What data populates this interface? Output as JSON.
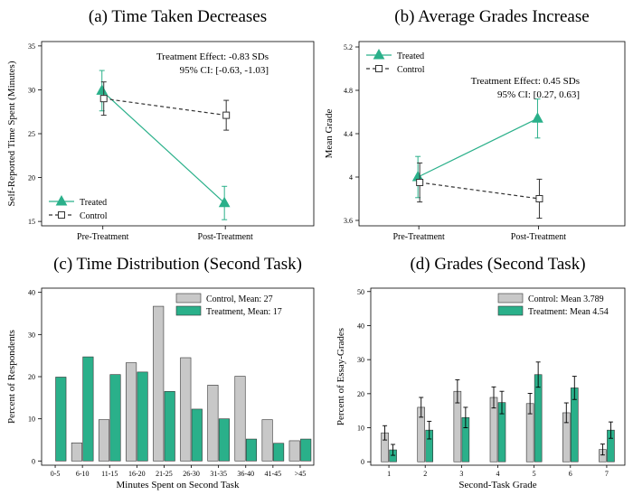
{
  "colors": {
    "treated": "#2ab08a",
    "control": "#555555",
    "bar_control": "#c8c8c8",
    "bar_treat": "#2ab08a"
  },
  "chart_data": [
    {
      "type": "line",
      "title": "(a) Time Taken Decreases",
      "ylabel": "Self-Reported Time Spent (Minutes)",
      "xlabel": "",
      "categories": [
        "Pre-Treatment",
        "Post-Treatment"
      ],
      "yticks": [
        15,
        20,
        25,
        30,
        35
      ],
      "ylim": [
        14.5,
        35.5
      ],
      "series": [
        {
          "name": "Treated",
          "values": [
            29.9,
            17.1
          ],
          "err": [
            2.3,
            1.9
          ],
          "marker": "triangle"
        },
        {
          "name": "Control",
          "values": [
            29.0,
            27.1
          ],
          "err": [
            1.9,
            1.7
          ],
          "marker": "square"
        }
      ],
      "annotation": [
        "Treatment Effect:    -0.83 SDs",
        "95% CI:   [-0.63, -1.03]"
      ],
      "legend": "bottom-left"
    },
    {
      "type": "line",
      "title": "(b) Average Grades Increase",
      "ylabel": "Mean Grade",
      "xlabel": "",
      "categories": [
        "Pre-Treatment",
        "Post-Treatment"
      ],
      "yticks": [
        3.6,
        4,
        4.4,
        4.8,
        5.2
      ],
      "ytick_labels": [
        "3.6",
        "4",
        "4.4",
        "4.8",
        "5.2"
      ],
      "ylim": [
        3.55,
        5.25
      ],
      "series": [
        {
          "name": "Treated",
          "values": [
            4.0,
            4.54
          ],
          "err": [
            0.19,
            0.18
          ],
          "marker": "triangle"
        },
        {
          "name": "Control",
          "values": [
            3.95,
            3.8
          ],
          "err": [
            0.18,
            0.18
          ],
          "marker": "square"
        }
      ],
      "annotation": [
        "Treatment Effect:     0.45 SDs",
        "95% CI:  [0.27, 0.63]"
      ],
      "legend": "top-left"
    },
    {
      "type": "bar",
      "title": "(c) Time Distribution (Second Task)",
      "ylabel": "Percent of Respondents",
      "xlabel": "Minutes Spent on Second Task",
      "categories": [
        "0-5",
        "6-10",
        "11-15",
        "16-20",
        "21-25",
        "26-30",
        "31-35",
        "36-40",
        "41-45",
        ">45"
      ],
      "yticks": [
        0,
        10,
        20,
        30,
        40
      ],
      "ylim": [
        -1,
        41
      ],
      "series": [
        {
          "name": "Control, Mean: 27",
          "values": [
            0,
            4.3,
            9.8,
            23.3,
            36.7,
            24.5,
            18.0,
            20.1,
            9.8,
            4.8
          ]
        },
        {
          "name": "Treatment, Mean: 17",
          "values": [
            19.9,
            24.7,
            20.5,
            21.1,
            16.5,
            12.3,
            10.0,
            5.2,
            4.2,
            5.2
          ]
        }
      ],
      "legend": "top-right"
    },
    {
      "type": "bar",
      "title": "(d) Grades (Second Task)",
      "ylabel": "Percent of Essay-Grades",
      "xlabel": "Second-Task Grade",
      "categories": [
        "1",
        "2",
        "3",
        "4",
        "5",
        "6",
        "7"
      ],
      "yticks": [
        0,
        10,
        20,
        30,
        40,
        50
      ],
      "ylim": [
        -1,
        51
      ],
      "series": [
        {
          "name": "Control: Mean 3.789",
          "values": [
            8.5,
            16.0,
            20.7,
            18.9,
            17.1,
            14.4,
            3.6
          ],
          "err": [
            2.1,
            2.9,
            3.4,
            3.1,
            3.0,
            2.9,
            1.6
          ]
        },
        {
          "name": "Treatment: Mean 4.54",
          "values": [
            3.5,
            9.3,
            13.0,
            17.4,
            25.6,
            21.7,
            9.3
          ],
          "err": [
            1.6,
            2.6,
            3.0,
            3.3,
            3.7,
            3.4,
            2.4
          ]
        }
      ],
      "legend": "top-right"
    }
  ]
}
